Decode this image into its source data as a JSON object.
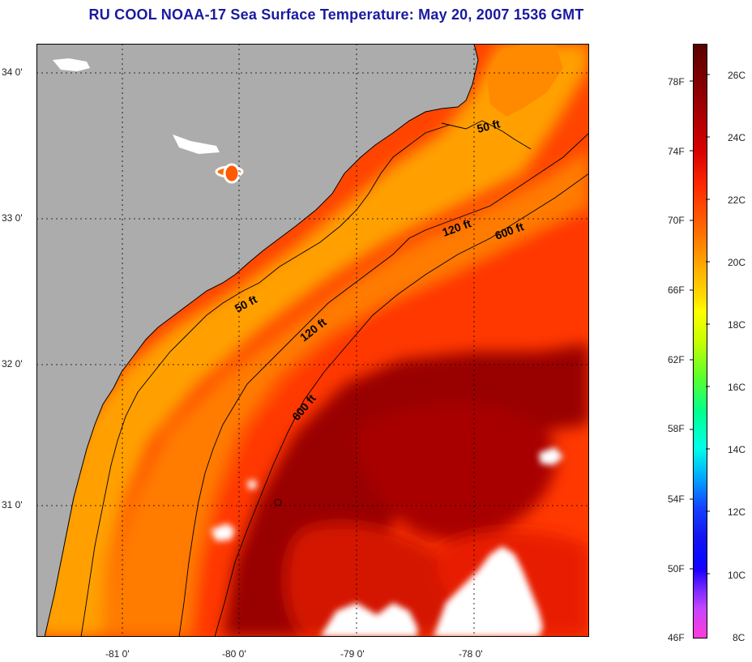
{
  "title": "RU COOL  NOAA-17  Sea Surface Temperature:  May 20, 2007 1536 GMT",
  "map": {
    "longitude_labels": [
      "-81 0'",
      "-80 0'",
      "-79 0'",
      "-78 0'"
    ],
    "latitude_labels": [
      "34 0'",
      "33 0'",
      "32 0'",
      "31 0'"
    ],
    "contour_labels": [
      "50 ft",
      "120 ft",
      "600 ft"
    ],
    "colors": {
      "land": "#acacac",
      "nearshore": "#ffa000",
      "shelf": "#ff7a00",
      "offshore": "#ff3a00",
      "gulf_stream": "#990000",
      "cloud": "#ffffff",
      "contour": "#000000"
    }
  },
  "colorbar": {
    "fahrenheit_labels": [
      "78F",
      "74F",
      "70F",
      "66F",
      "62F",
      "58F",
      "54F",
      "50F",
      "46F"
    ],
    "celsius_labels": [
      "26C",
      "24C",
      "22C",
      "20C",
      "18C",
      "16C",
      "14C",
      "12C",
      "10C",
      "8C"
    ],
    "range_c": [
      8,
      27
    ]
  }
}
